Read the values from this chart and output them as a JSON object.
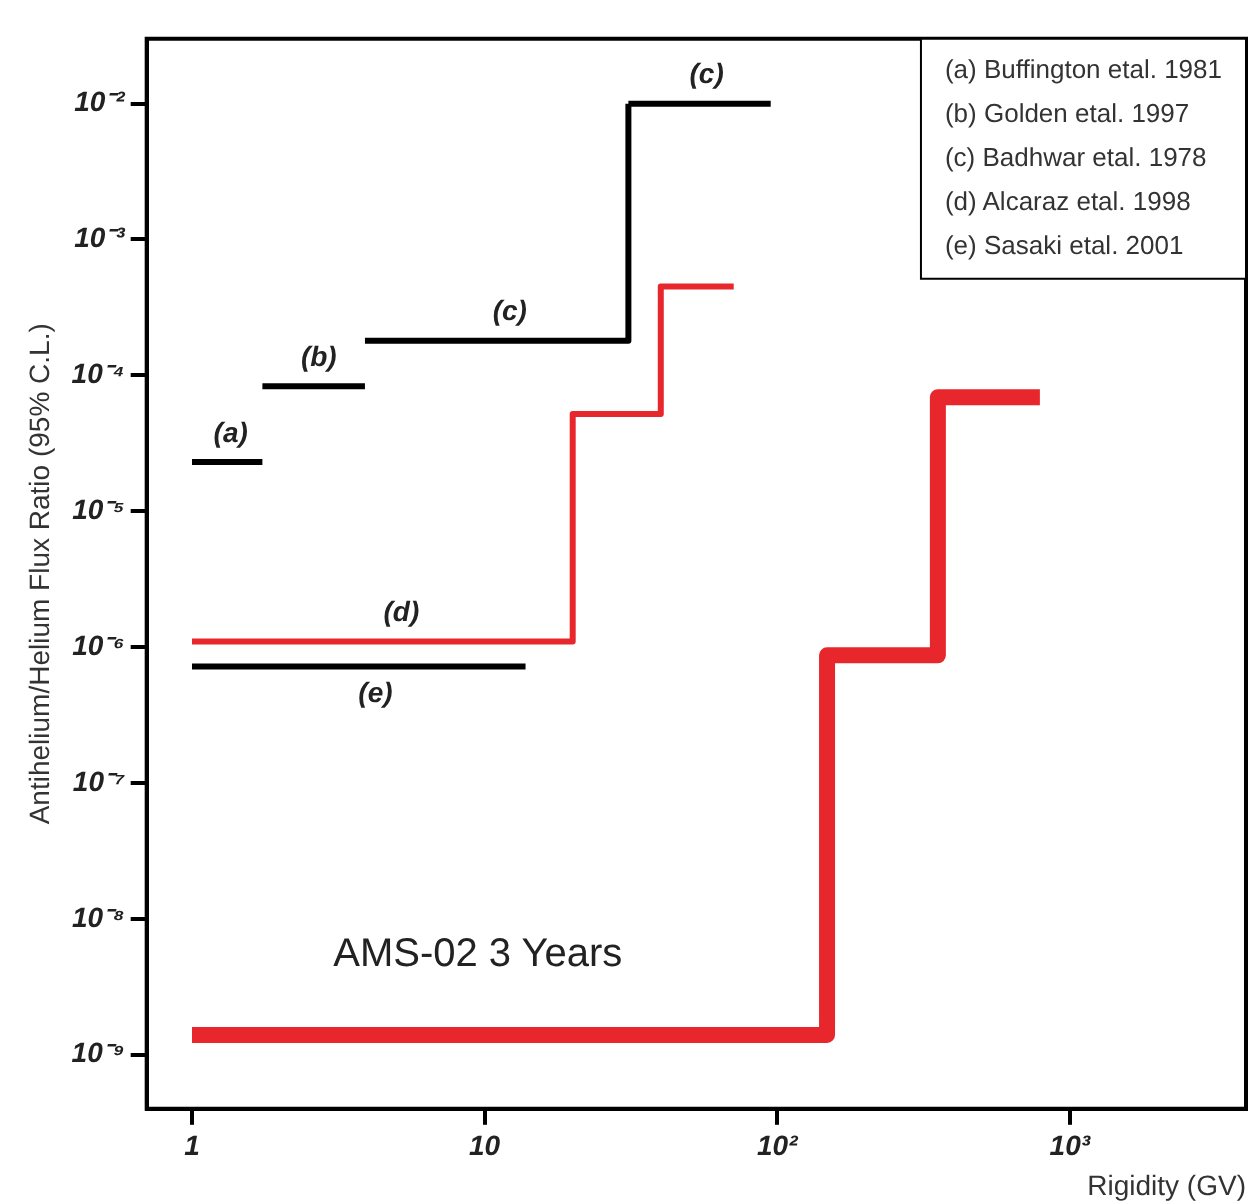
{
  "chart_data": {
    "type": "step",
    "xlabel": "Rigidity (GV)",
    "ylabel": "Antihelium/Helium Flux Ratio (95% C.L.)",
    "log": "xy",
    "xlim": [
      0.7,
      4000
    ],
    "ylim": [
      4e-10,
      0.03
    ],
    "xticks": [
      1,
      10,
      {
        "value": 100,
        "label": "10²"
      },
      {
        "value": 1000,
        "label": "10³"
      }
    ],
    "yticks": [
      {
        "value": 1e-09,
        "label": "10⁻⁹"
      },
      {
        "value": 1e-08,
        "label": "10⁻⁸"
      },
      {
        "value": 1e-07,
        "label": "10⁻⁷"
      },
      {
        "value": 1e-06,
        "label": "10⁻⁶"
      },
      {
        "value": 1e-05,
        "label": "10⁻⁵"
      },
      {
        "value": 0.0001,
        "label": "10⁻⁴"
      },
      {
        "value": 0.001,
        "label": "10⁻³"
      },
      {
        "value": 0.01,
        "label": "10⁻²"
      }
    ],
    "grid": false,
    "legend": false,
    "marker": "none",
    "line_style": "solid",
    "series": [
      {
        "name": "(a)",
        "color": "#000000",
        "x": [
          1,
          1.74
        ],
        "values": [
          2.3e-05,
          2.3e-05
        ]
      },
      {
        "name": "(b)",
        "color": "#000000",
        "x": [
          1.74,
          3.9
        ],
        "values": [
          8.3e-05,
          8.3e-05
        ]
      },
      {
        "name": "(c)",
        "color": "#000000",
        "x": [
          3.9,
          31,
          31
        ],
        "values": [
          0.00018,
          0.00018,
          0.01
        ]
      },
      {
        "name": "(c)",
        "color": "#000000",
        "x": [
          31,
          95
        ],
        "values": [
          0.01,
          0.01
        ]
      },
      {
        "name": "(d)",
        "color": "#e8272d",
        "x": [
          1,
          20,
          40,
          71
        ],
        "values": [
          1.1e-06,
          5.2e-05,
          0.00045,
          0.00045
        ]
      },
      {
        "name": "(e)",
        "color": "#000000",
        "x": [
          1,
          13.8
        ],
        "values": [
          7.2e-07,
          7.2e-07
        ]
      },
      {
        "name": "AMS-02 3 Years",
        "color": "#e8272d",
        "x": [
          1,
          148,
          354,
          790
        ],
        "values": [
          1.4e-09,
          8.7e-07,
          6.9e-05,
          6.9e-05
        ]
      }
    ],
    "annotations": [
      "(a) Buffington etal. 1981",
      "(b) Golden etal. 1997",
      "(c) Badhwar etal. 1978",
      "(d) Alcaraz etal. 1998",
      "(e) Sasaki etal. 2001"
    ]
  }
}
